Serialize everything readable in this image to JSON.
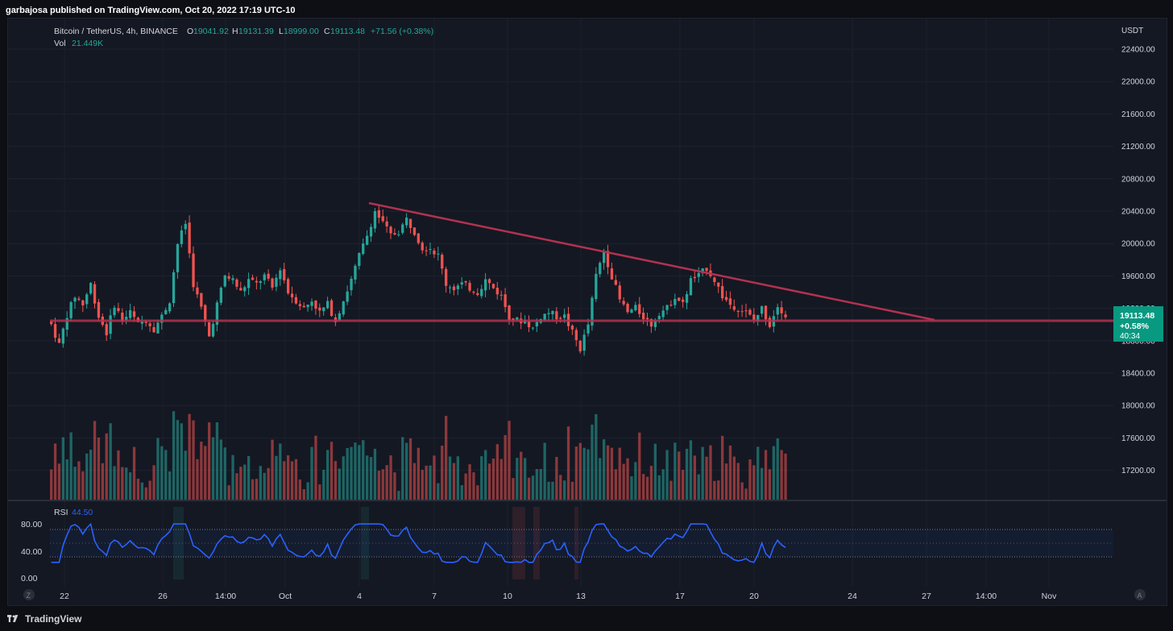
{
  "header": {
    "publisher": "garbajosa published on TradingView.com, Oct 20, 2022 17:19 UTC-10"
  },
  "legend": {
    "symbol": "Bitcoin / TetherUS, 4h, BINANCE",
    "o_label": "O",
    "o_value": "19041.92",
    "h_label": "H",
    "h_value": "19131.39",
    "l_label": "L",
    "l_value": "18999.00",
    "c_label": "C",
    "c_value": "19113.48",
    "change": "+71.56 (+0.38%)",
    "vol_label": "Vol",
    "vol_value": "21.449K",
    "rsi_label": "RSI",
    "rsi_value": "44.50"
  },
  "price_axis": {
    "currency": "USDT",
    "ticks": [
      "22400.00",
      "22000.00",
      "21600.00",
      "21200.00",
      "20800.00",
      "20400.00",
      "20000.00",
      "19600.00",
      "19200.00",
      "18800.00",
      "18400.00",
      "18000.00",
      "17600.00",
      "17200.00"
    ],
    "last_price": "19113.48",
    "last_change": "+0.58%",
    "countdown": "40:34"
  },
  "rsi_axis": {
    "ticks": [
      "80.00",
      "40.00",
      "0.00"
    ]
  },
  "time_axis": {
    "labels": [
      "22",
      "26",
      "14:00",
      "Oct",
      "4",
      "7",
      "10",
      "13",
      "17",
      "20",
      "24",
      "27",
      "14:00",
      "Nov"
    ]
  },
  "buttons": {
    "left": "Z",
    "right": "A"
  },
  "footer": {
    "brand": "TradingView"
  },
  "colors": {
    "up": "#26a69a",
    "down": "#ef5350",
    "trendline": "#b2324f",
    "rsi_line": "#2962ff",
    "accent": "#089981"
  },
  "chart_data": {
    "type": "candlestick",
    "title": "Bitcoin / TetherUS, 4h, BINANCE",
    "interval": "4h",
    "ylabel": "USDT",
    "ylim": [
      17000,
      22500
    ],
    "x_labels": [
      "22",
      "26",
      "14:00",
      "Oct",
      "4",
      "7",
      "10",
      "13",
      "17",
      "20",
      "24",
      "27",
      "14:00",
      "Nov"
    ],
    "close_path": [
      [
        0,
        19000
      ],
      [
        2,
        18750
      ],
      [
        4,
        19120
      ],
      [
        6,
        19350
      ],
      [
        8,
        19250
      ],
      [
        10,
        19500
      ],
      [
        12,
        19100
      ],
      [
        14,
        18900
      ],
      [
        16,
        19250
      ],
      [
        18,
        19050
      ],
      [
        20,
        19150
      ],
      [
        22,
        19000
      ],
      [
        24,
        19060
      ],
      [
        26,
        18950
      ],
      [
        28,
        19100
      ],
      [
        30,
        19300
      ],
      [
        32,
        20000
      ],
      [
        34,
        20250
      ],
      [
        36,
        19500
      ],
      [
        38,
        19200
      ],
      [
        40,
        18850
      ],
      [
        42,
        19250
      ],
      [
        44,
        19600
      ],
      [
        46,
        19550
      ],
      [
        48,
        19400
      ],
      [
        50,
        19550
      ],
      [
        52,
        19500
      ],
      [
        54,
        19600
      ],
      [
        56,
        19450
      ],
      [
        58,
        19700
      ],
      [
        60,
        19400
      ],
      [
        62,
        19300
      ],
      [
        64,
        19200
      ],
      [
        66,
        19300
      ],
      [
        68,
        19150
      ],
      [
        70,
        19250
      ],
      [
        72,
        19050
      ],
      [
        74,
        19300
      ],
      [
        76,
        19550
      ],
      [
        78,
        19850
      ],
      [
        80,
        20100
      ],
      [
        82,
        20400
      ],
      [
        84,
        20250
      ],
      [
        86,
        20100
      ],
      [
        88,
        20150
      ],
      [
        90,
        20300
      ],
      [
        92,
        20150
      ],
      [
        94,
        19950
      ],
      [
        96,
        19950
      ],
      [
        98,
        19850
      ],
      [
        100,
        19500
      ],
      [
        102,
        19450
      ],
      [
        104,
        19500
      ],
      [
        106,
        19450
      ],
      [
        108,
        19400
      ],
      [
        110,
        19550
      ],
      [
        112,
        19450
      ],
      [
        114,
        19350
      ],
      [
        116,
        19100
      ],
      [
        118,
        19050
      ],
      [
        120,
        19050
      ],
      [
        122,
        18950
      ],
      [
        124,
        19100
      ],
      [
        126,
        19150
      ],
      [
        128,
        19100
      ],
      [
        130,
        19100
      ],
      [
        132,
        18900
      ],
      [
        134,
        18700
      ],
      [
        136,
        19000
      ],
      [
        138,
        19600
      ],
      [
        140,
        19900
      ],
      [
        142,
        19600
      ],
      [
        144,
        19300
      ],
      [
        146,
        19150
      ],
      [
        148,
        19200
      ],
      [
        150,
        19100
      ],
      [
        152,
        19000
      ],
      [
        154,
        19150
      ],
      [
        156,
        19200
      ],
      [
        158,
        19350
      ],
      [
        160,
        19250
      ],
      [
        162,
        19550
      ],
      [
        164,
        19600
      ],
      [
        166,
        19700
      ],
      [
        168,
        19550
      ],
      [
        170,
        19350
      ],
      [
        172,
        19250
      ],
      [
        174,
        19200
      ],
      [
        176,
        19150
      ],
      [
        178,
        19050
      ],
      [
        180,
        19200
      ],
      [
        182,
        19000
      ],
      [
        184,
        19250
      ],
      [
        186,
        19113
      ]
    ],
    "volume_scale": {
      "max_label": "21.449K"
    },
    "rsi": {
      "last": 44.5,
      "overbought": 70,
      "oversold": 30,
      "mid": 50,
      "ylim": [
        0,
        100
      ]
    },
    "annotations": {
      "trendline": [
        [
          20500,
          "Oct 4"
        ],
        [
          19100,
          "Oct 27"
        ]
      ],
      "support": 19100
    }
  }
}
